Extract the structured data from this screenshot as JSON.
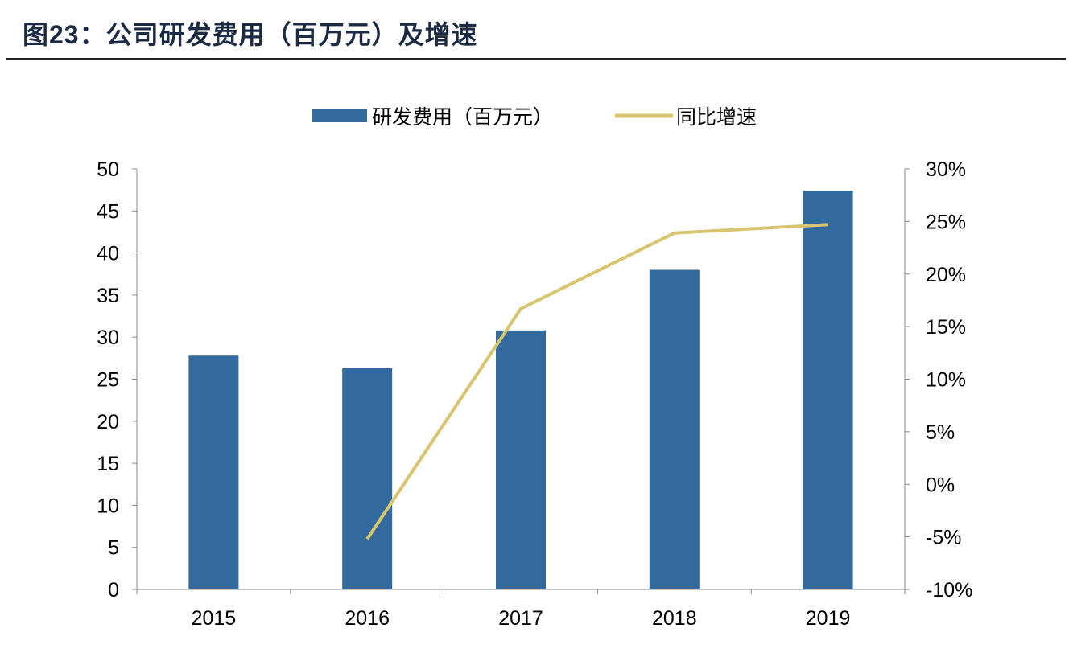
{
  "title": "图23：公司研发费用（百万元）及增速",
  "colors": {
    "bar": "#336a9e",
    "line": "#d9c46f",
    "title": "#1c2a44"
  },
  "chart_data": {
    "type": "bar+line",
    "title": "图23：公司研发费用（百万元）及增速",
    "categories": [
      "2015",
      "2016",
      "2017",
      "2018",
      "2019"
    ],
    "series": [
      {
        "name": "研发费用（百万元）",
        "type": "bar",
        "axis": "left",
        "values": [
          27.8,
          26.3,
          30.8,
          38.0,
          47.4
        ]
      },
      {
        "name": "同比增速",
        "type": "line",
        "axis": "right",
        "values": [
          null,
          -5.2,
          16.7,
          23.9,
          24.7
        ]
      }
    ],
    "left_axis": {
      "ylim": [
        0,
        50
      ],
      "ticks": [
        "0",
        "5",
        "10",
        "15",
        "20",
        "25",
        "30",
        "35",
        "40",
        "45",
        "50"
      ]
    },
    "right_axis": {
      "ylim": [
        -10,
        30
      ],
      "unit": "%",
      "ticks": [
        "-10%",
        "-5%",
        "0%",
        "5%",
        "10%",
        "15%",
        "20%",
        "25%",
        "30%"
      ]
    },
    "legend": {
      "placement": "top",
      "items": [
        "研发费用（百万元）",
        "同比增速"
      ]
    },
    "grid": false
  }
}
